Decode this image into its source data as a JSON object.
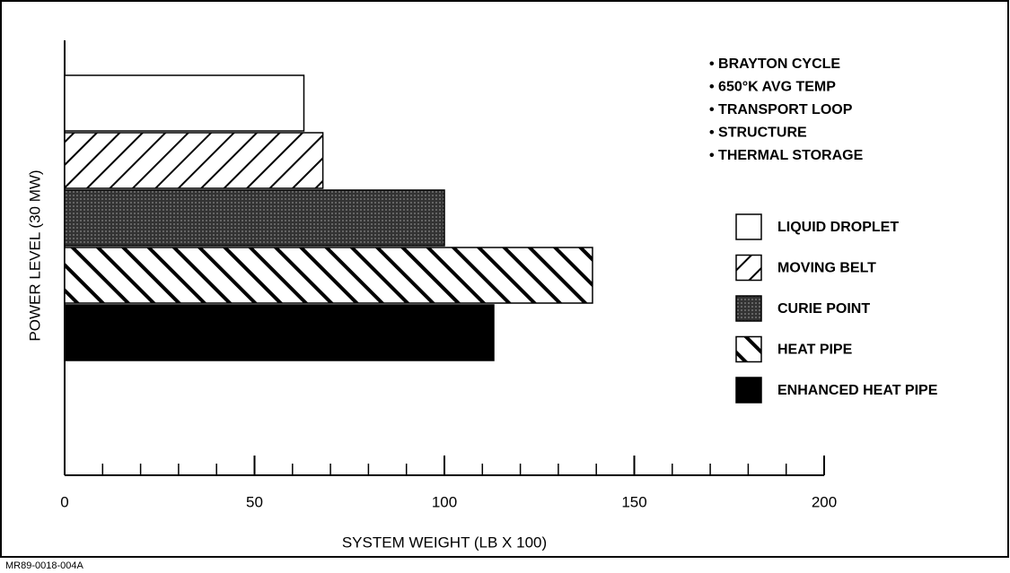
{
  "chart_data": {
    "type": "hbar",
    "xlabel": "SYSTEM WEIGHT (LB X 100)",
    "ylabel": "POWER LEVEL (30 MW)",
    "notes": [
      "• BRAYTON CYCLE",
      "• 650°K AVG TEMP",
      "• TRANSPORT LOOP",
      "• STRUCTURE",
      "• THERMAL STORAGE"
    ],
    "footer": "MR89-0018-004A",
    "series": [
      {
        "name": "LIQUID DROPLET",
        "pattern": "none",
        "values": [
          63
        ]
      },
      {
        "name": "MOVING BELT",
        "pattern": "hatch-forward",
        "values": [
          68
        ]
      },
      {
        "name": "CURIE POINT",
        "pattern": "stipple",
        "values": [
          100
        ]
      },
      {
        "name": "HEAT PIPE",
        "pattern": "hatch-back",
        "values": [
          139
        ]
      },
      {
        "name": "ENHANCED HEAT PIPE",
        "pattern": "solid",
        "values": [
          113
        ]
      }
    ],
    "xlim": [
      0,
      200
    ],
    "xticks": [
      0,
      50,
      100,
      150,
      200
    ],
    "xminorticks": [
      10,
      20,
      30,
      40,
      60,
      70,
      80,
      90,
      110,
      120,
      130,
      140,
      160,
      170,
      180,
      190
    ]
  }
}
